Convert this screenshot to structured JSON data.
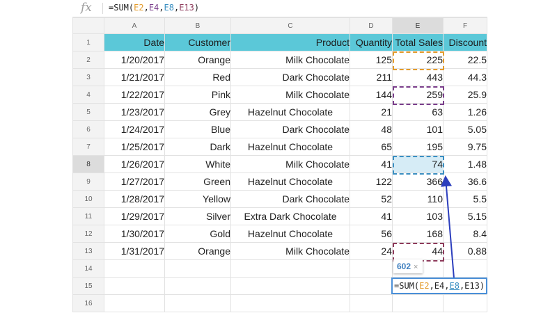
{
  "formula_bar": {
    "fx_label": "fx",
    "parts": [
      "=SUM(",
      "E2",
      ",",
      "E4",
      ",",
      "E8",
      ",",
      "E13",
      ")"
    ]
  },
  "columns": [
    "A",
    "B",
    "C",
    "D",
    "E",
    "F"
  ],
  "row_numbers": [
    "1",
    "2",
    "3",
    "4",
    "5",
    "6",
    "7",
    "8",
    "9",
    "10",
    "11",
    "12",
    "13",
    "14",
    "15",
    "16"
  ],
  "header_row": [
    "Date",
    "Customer",
    "Product",
    "Quantity",
    "Total Sales",
    "Discount"
  ],
  "rows": [
    [
      "1/20/2017",
      "Orange",
      "Milk Chocolate",
      "125",
      "225",
      "22.5"
    ],
    [
      "1/21/2017",
      "Red",
      "Dark Chocolate",
      "211",
      "443",
      "44.3"
    ],
    [
      "1/22/2017",
      "Pink",
      "Milk Chocolate",
      "144",
      "259",
      "25.9"
    ],
    [
      "1/23/2017",
      "Grey",
      "Hazelnut Chocolate",
      "21",
      "63",
      "1.26"
    ],
    [
      "1/24/2017",
      "Blue",
      "Dark Chocolate",
      "48",
      "101",
      "5.05"
    ],
    [
      "1/25/2017",
      "Dark",
      "Hazelnut Chocolate",
      "65",
      "195",
      "9.75"
    ],
    [
      "1/26/2017",
      "White",
      "Milk Chocolate",
      "41",
      "74",
      "1.48"
    ],
    [
      "1/27/2017",
      "Green",
      "Hazelnut Chocolate",
      "122",
      "366",
      "36.6"
    ],
    [
      "1/28/2017",
      "Yellow",
      "Dark Chocolate",
      "52",
      "110",
      "5.5"
    ],
    [
      "1/29/2017",
      "Silver",
      "Extra Dark Chocolate",
      "41",
      "103",
      "5.15"
    ],
    [
      "1/30/2017",
      "Gold",
      "Hazelnut Chocolate",
      "56",
      "168",
      "8.4"
    ],
    [
      "1/31/2017",
      "Orange",
      "Milk Chocolate",
      "24",
      "44",
      "0.88"
    ]
  ],
  "tooltip": {
    "value": "602",
    "close": "×"
  },
  "edit_box": {
    "parts": [
      "=SUM(",
      "E2",
      ",E4,",
      "E8",
      ",E13)"
    ]
  },
  "colors": {
    "header_fill": "#5bc8d8",
    "ref_e2": "#e39b2c",
    "ref_e4": "#7b3f8c",
    "ref_e8": "#3a8fc2",
    "ref_e13": "#8e3b5b",
    "arrow": "#2c3ebd"
  }
}
